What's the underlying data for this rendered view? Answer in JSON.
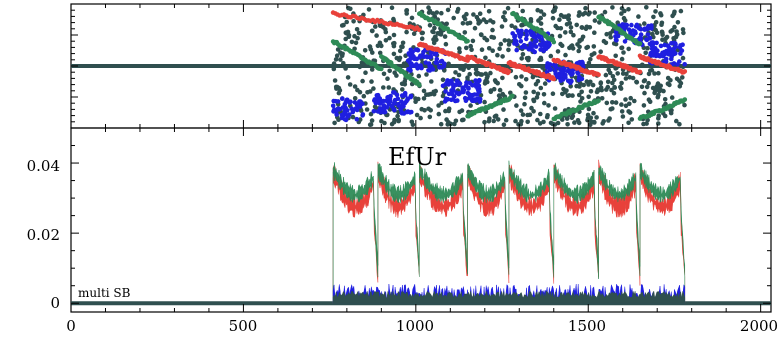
{
  "chart_data": [
    {
      "type": "scatter",
      "panel": "top",
      "title": "",
      "xlabel": "",
      "ylabel": "",
      "xlim": [
        0,
        2030
      ],
      "ylim": [
        -1,
        1
      ],
      "y_tick_labels_shown": false,
      "grid": false,
      "colors": {
        "red": "#e8413a",
        "blue": "#1f1fe0",
        "green": "#2e8b57",
        "dark": "#2f4f4f"
      },
      "series": [
        {
          "color": "red",
          "x": [
            760,
            1010,
            1150,
            1270,
            1400,
            1530,
            1650,
            1780
          ],
          "y": [
            0.85,
            0.35,
            0.15,
            0.05,
            0.1,
            0.15,
            0.15,
            0.3
          ]
        },
        {
          "color": "blue",
          "x": [
            760,
            900,
            1000,
            1100,
            1300,
            1400,
            1600,
            1700
          ],
          "y": [
            -0.7,
            -0.6,
            0.1,
            -0.4,
            0.4,
            -0.1,
            0.5,
            0.2
          ]
        },
        {
          "color": "green",
          "x": [
            760,
            900,
            1010,
            1150,
            1280,
            1400,
            1530,
            1650,
            1780
          ],
          "y": [
            0.4,
            0.15,
            0.85,
            -0.8,
            0.85,
            -0.85,
            0.8,
            -0.85,
            -0.6
          ]
        },
        {
          "color": "dark",
          "x": [
            760,
            900,
            1000,
            1100,
            1300,
            1400,
            1500,
            1650,
            1780
          ],
          "y": [
            0.1,
            -0.3,
            0.5,
            -0.5,
            0.6,
            -0.2,
            0.3,
            0.6,
            0.4
          ]
        }
      ],
      "baseline": 0
    },
    {
      "type": "area",
      "panel": "bottom",
      "title": "",
      "xlabel": "",
      "ylabel": "",
      "xlim": [
        0,
        2030
      ],
      "ylim": [
        -0.0025,
        0.05
      ],
      "x_tick_labels": [
        "0",
        "500",
        "1000",
        "1500",
        "2000"
      ],
      "x_ticks": [
        0,
        500,
        1000,
        1500,
        2000
      ],
      "y_tick_labels": [
        "0",
        "0.02",
        "0.04"
      ],
      "y_ticks": [
        0,
        0.02,
        0.04
      ],
      "grid": false,
      "annotations": [
        "EfUr",
        "multi SB"
      ],
      "active_range": [
        760,
        1780
      ],
      "segment_starts": [
        760,
        890,
        1010,
        1150,
        1270,
        1400,
        1530,
        1650,
        1780
      ],
      "series": [
        {
          "color": "red",
          "level_high": 0.037,
          "level_low": 0.025,
          "dip": 0.008
        },
        {
          "color": "green",
          "level_high": 0.038,
          "level_low": 0.029,
          "dip": 0.009
        },
        {
          "color": "blue",
          "level_high": 0.004,
          "level_low": 0.0,
          "dip": 0.0
        },
        {
          "color": "dark",
          "level_high": 0.003,
          "level_low": 0.0,
          "dip": 0.0
        }
      ]
    }
  ],
  "annotations": {
    "top_label": "EfUr",
    "corner_label": "multi SB"
  },
  "x_ticks": {
    "t0": "0",
    "t1": "500",
    "t2": "1000",
    "t3": "1500",
    "t4": "2000"
  },
  "y_ticks": {
    "t0": "0",
    "t1": "0.02",
    "t2": "0.04"
  }
}
